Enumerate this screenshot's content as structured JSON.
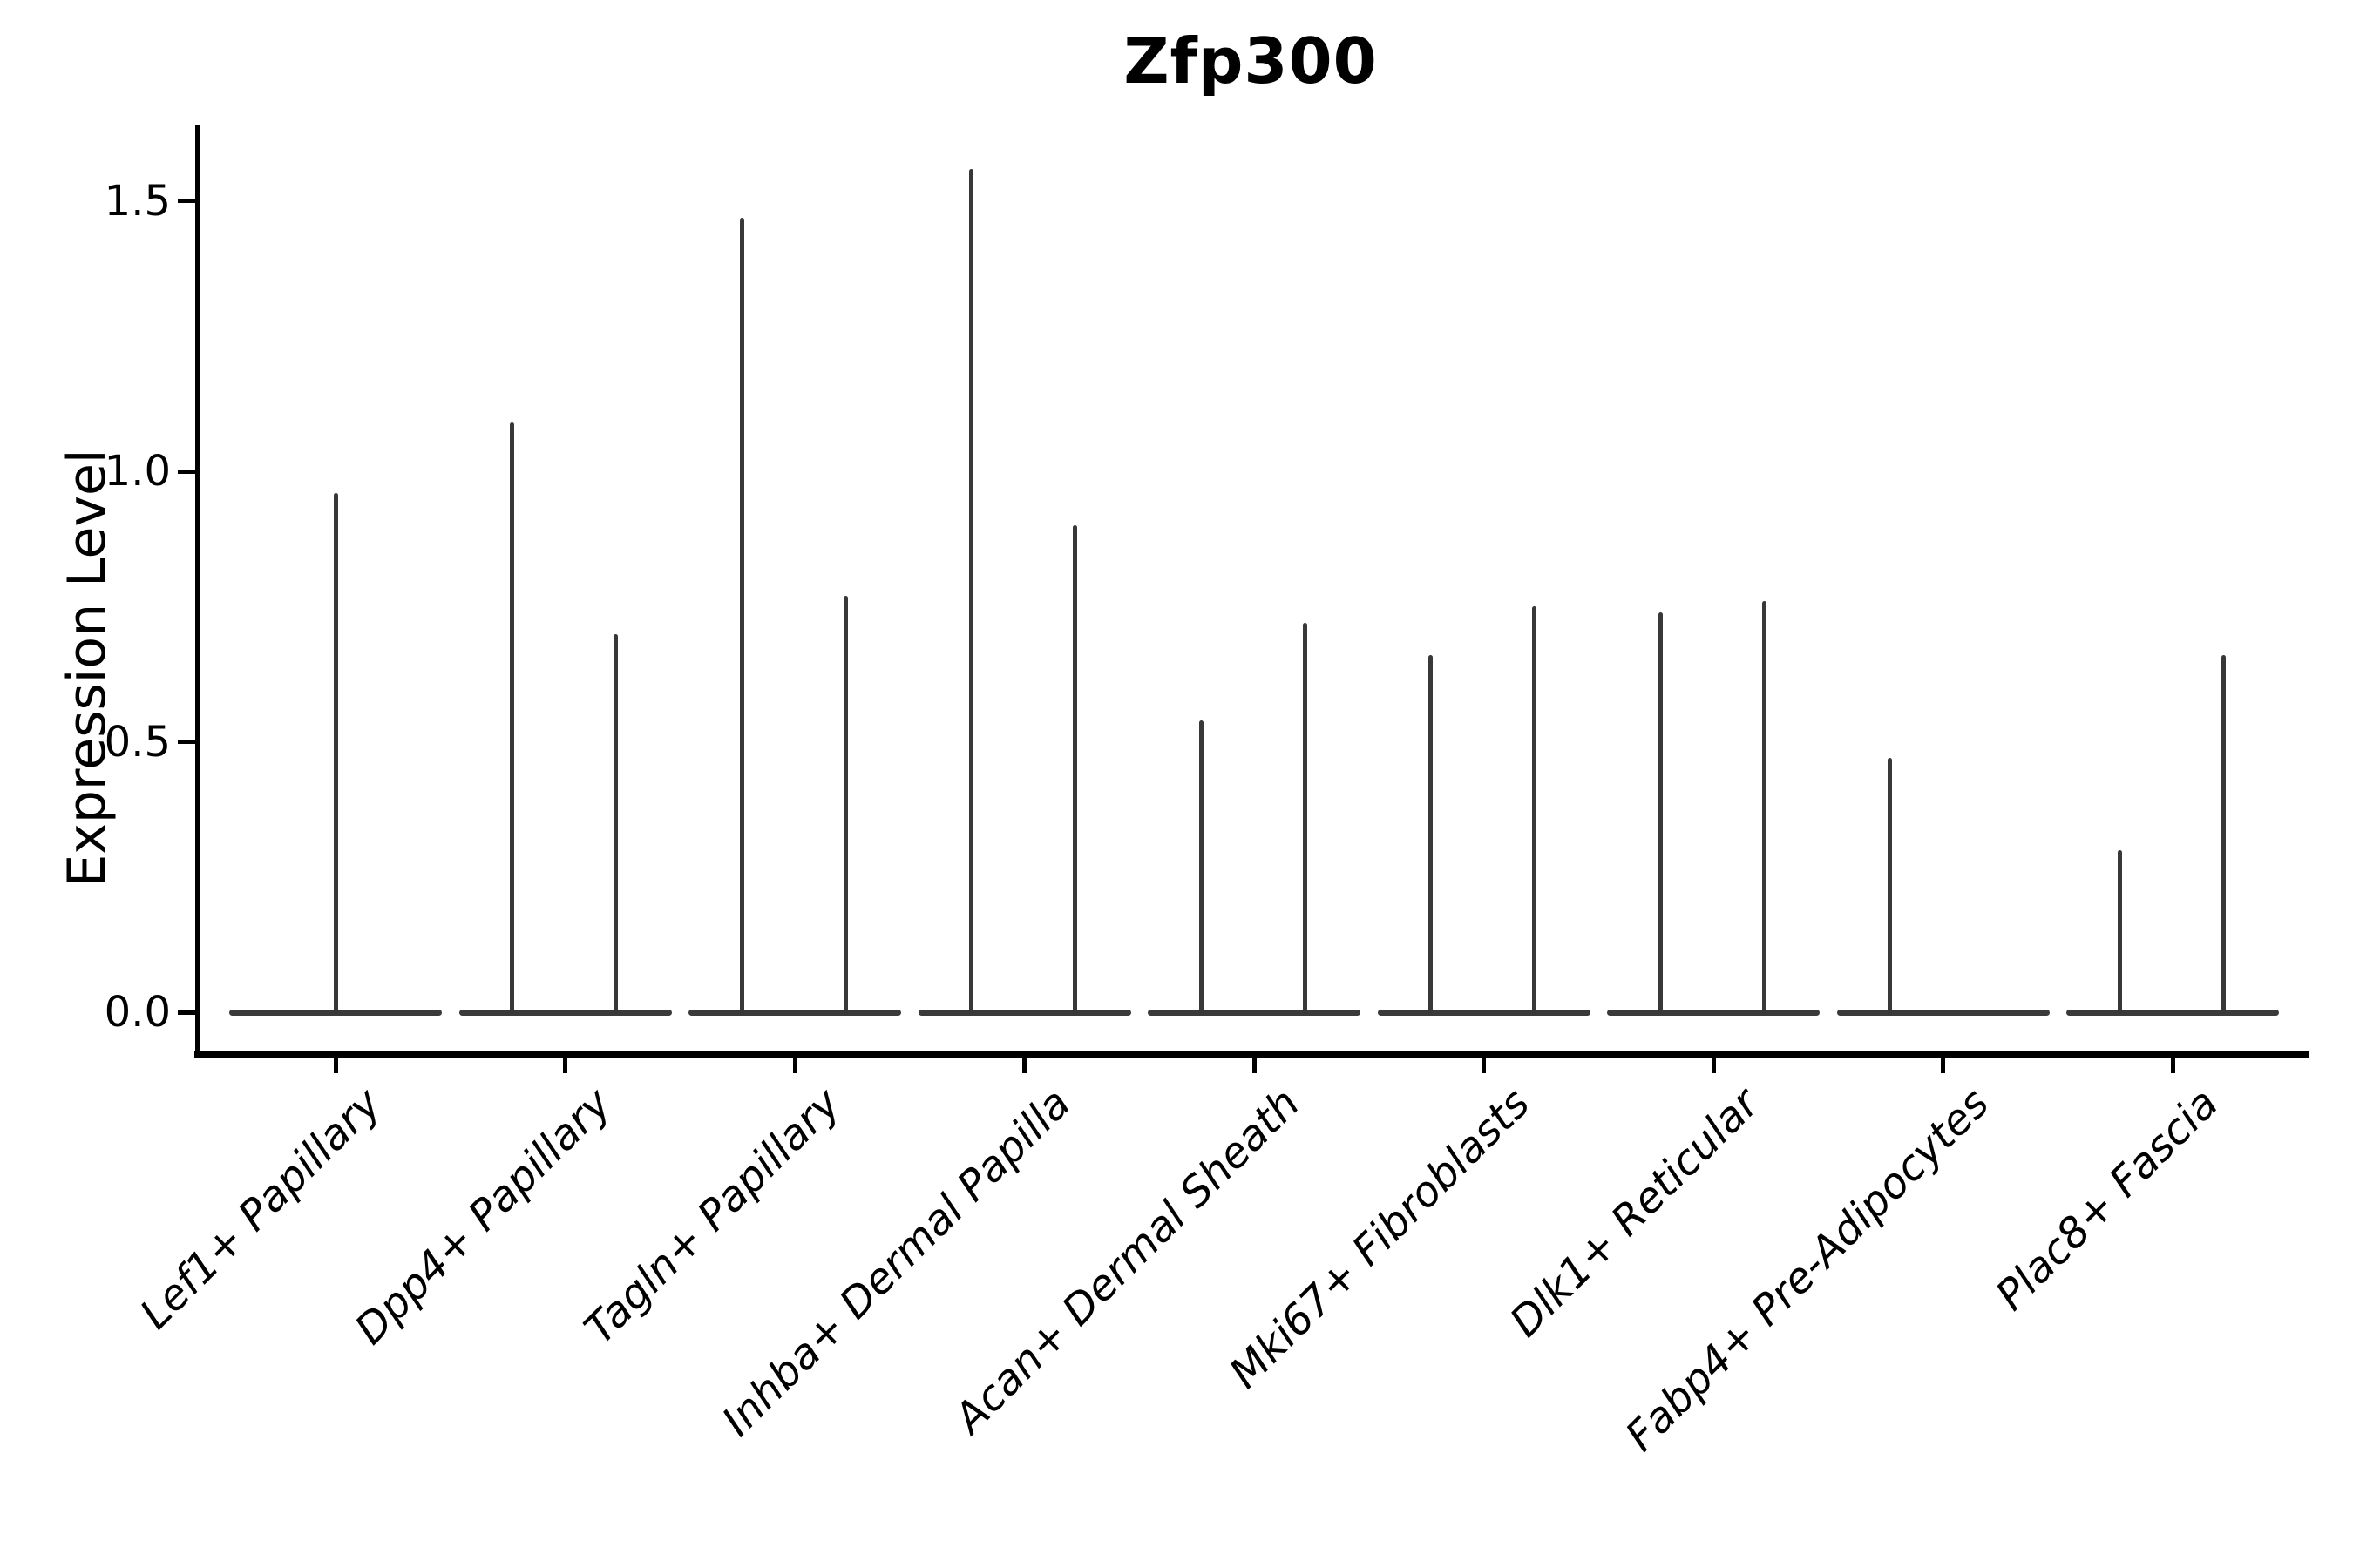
{
  "chart_data": {
    "type": "violin",
    "title": "Zfp300",
    "ylabel": "Expression Level",
    "xlabel": "",
    "ylim": [
      -0.08,
      1.69
    ],
    "grid": false,
    "legend": "none",
    "yticks": [
      {
        "label": "0.0",
        "value": 0.0
      },
      {
        "label": "0.5",
        "value": 0.5
      },
      {
        "label": "1.0",
        "value": 1.0
      },
      {
        "label": "1.5",
        "value": 1.5
      }
    ],
    "categories": [
      "Lef1+ Papillary",
      "Dpp4+ Papillary",
      "Tagln+ Papillary",
      "Inhba+ Dermal Papilla",
      "Acan+ Dermal Sheath",
      "Mki67+ Fibroblasts",
      "Dlk1+ Reticular",
      "Fabp4+ Pre-Adipocytes",
      "Plac8+ Fascia"
    ],
    "series": [
      {
        "category": "Lef1+ Papillary",
        "violins": [
          {
            "side": "center",
            "max": 0.96
          }
        ]
      },
      {
        "category": "Dpp4+ Papillary",
        "violins": [
          {
            "side": "left",
            "max": 1.09
          },
          {
            "side": "right",
            "max": 0.7
          }
        ]
      },
      {
        "category": "Tagln+ Papillary",
        "violins": [
          {
            "side": "left",
            "max": 1.47
          },
          {
            "side": "right",
            "max": 0.77
          }
        ]
      },
      {
        "category": "Inhba+ Dermal Papilla",
        "violins": [
          {
            "side": "left",
            "max": 1.56
          },
          {
            "side": "right",
            "max": 0.9
          }
        ]
      },
      {
        "category": "Acan+ Dermal Sheath",
        "violins": [
          {
            "side": "left",
            "max": 0.54
          },
          {
            "side": "right",
            "max": 0.72
          }
        ]
      },
      {
        "category": "Mki67+ Fibroblasts",
        "violins": [
          {
            "side": "left",
            "max": 0.66
          },
          {
            "side": "right",
            "max": 0.75
          }
        ]
      },
      {
        "category": "Dlk1+ Reticular",
        "violins": [
          {
            "side": "left",
            "max": 0.74
          },
          {
            "side": "right",
            "max": 0.76
          }
        ]
      },
      {
        "category": "Fabp4+ Pre-Adipocytes",
        "violins": [
          {
            "side": "left",
            "max": 0.47
          }
        ]
      },
      {
        "category": "Plac8+ Fascia",
        "violins": [
          {
            "side": "left",
            "max": 0.3
          },
          {
            "side": "right",
            "max": 0.66
          }
        ]
      }
    ],
    "colors": {
      "violin_stroke": "#3a3a3a",
      "axis": "#000000",
      "background": "#ffffff"
    }
  }
}
